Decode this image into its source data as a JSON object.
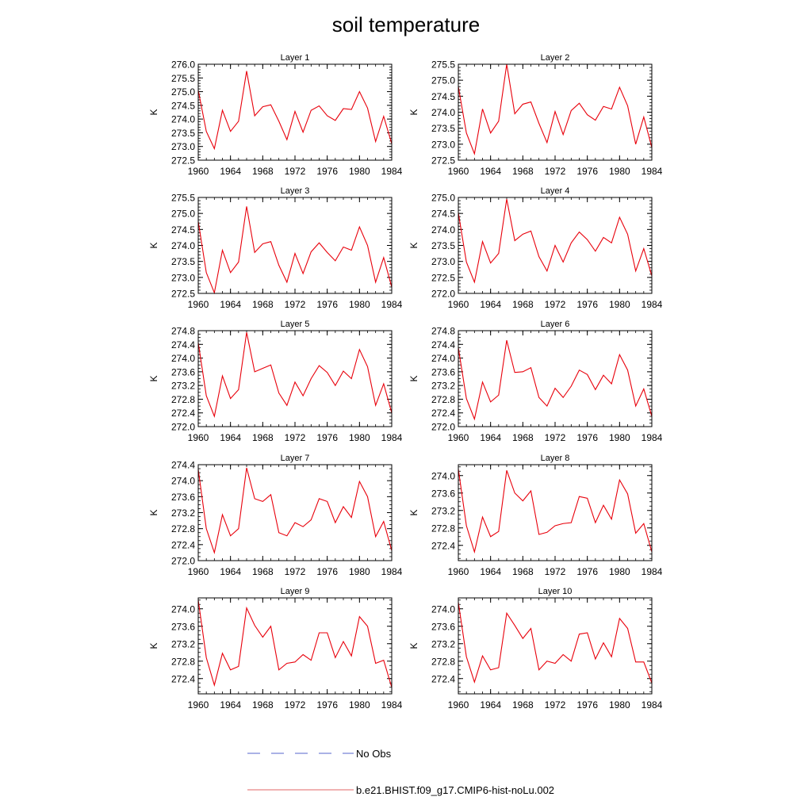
{
  "title": "soil temperature",
  "legend": [
    {
      "label": "No Obs",
      "style": "dashed",
      "color": "#5566cc"
    },
    {
      "label": "b.e21.BHIST.f09_g17.CMIP6-hist-noLu.002",
      "style": "solid",
      "color": "#e06666"
    }
  ],
  "chart_data": [
    {
      "type": "line",
      "title": "Layer 1",
      "ylabel": "K",
      "xlim": [
        1960,
        1984
      ],
      "ylim": [
        272.5,
        276.0
      ],
      "yticks": [
        "272.5",
        "273.0",
        "273.5",
        "274.0",
        "274.5",
        "275.0",
        "275.5",
        "276.0"
      ],
      "xticks": [
        "1960",
        "1964",
        "1968",
        "1972",
        "1976",
        "1980",
        "1984"
      ],
      "x": [
        1960,
        1961,
        1962,
        1963,
        1964,
        1965,
        1966,
        1967,
        1968,
        1969,
        1970,
        1971,
        1972,
        1973,
        1974,
        1975,
        1976,
        1977,
        1978,
        1979,
        1980,
        1981,
        1982,
        1983,
        1984
      ],
      "series": [
        {
          "name": "b.e21.BHIST.f09_g17.CMIP6-hist-noLu.002",
          "color": "#e8000b",
          "values": [
            275.05,
            273.55,
            272.92,
            274.32,
            273.55,
            273.92,
            275.75,
            274.12,
            274.45,
            274.52,
            273.92,
            273.25,
            274.28,
            273.52,
            274.32,
            274.48,
            274.12,
            273.95,
            274.38,
            274.35,
            275.0,
            274.4,
            273.18,
            274.1,
            273.1
          ]
        }
      ]
    },
    {
      "type": "line",
      "title": "Layer 2",
      "ylabel": "K",
      "xlim": [
        1960,
        1984
      ],
      "ylim": [
        272.5,
        275.5
      ],
      "yticks": [
        "272.5",
        "273.0",
        "273.5",
        "274.0",
        "274.5",
        "275.0",
        "275.5"
      ],
      "xticks": [
        "1960",
        "1964",
        "1968",
        "1972",
        "1976",
        "1980",
        "1984"
      ],
      "x": [
        1960,
        1961,
        1962,
        1963,
        1964,
        1965,
        1966,
        1967,
        1968,
        1969,
        1970,
        1971,
        1972,
        1973,
        1974,
        1975,
        1976,
        1977,
        1978,
        1979,
        1980,
        1981,
        1982,
        1983,
        1984
      ],
      "series": [
        {
          "name": "b.e21.BHIST.f09_g17.CMIP6-hist-noLu.002",
          "color": "#e8000b",
          "values": [
            274.8,
            273.35,
            272.7,
            274.1,
            273.35,
            273.72,
            275.5,
            273.95,
            274.25,
            274.32,
            273.65,
            273.05,
            274.02,
            273.3,
            274.05,
            274.28,
            273.92,
            273.75,
            274.18,
            274.1,
            274.78,
            274.2,
            273.0,
            273.85,
            272.9
          ]
        }
      ]
    },
    {
      "type": "line",
      "title": "Layer 3",
      "ylabel": "K",
      "xlim": [
        1960,
        1984
      ],
      "ylim": [
        272.5,
        275.5
      ],
      "yticks": [
        "272.5",
        "273.0",
        "273.5",
        "274.0",
        "274.5",
        "275.0",
        "275.5"
      ],
      "xticks": [
        "1960",
        "1964",
        "1968",
        "1972",
        "1976",
        "1980",
        "1984"
      ],
      "x": [
        1960,
        1961,
        1962,
        1963,
        1964,
        1965,
        1966,
        1967,
        1968,
        1969,
        1970,
        1971,
        1972,
        1973,
        1974,
        1975,
        1976,
        1977,
        1978,
        1979,
        1980,
        1981,
        1982,
        1983,
        1984
      ],
      "series": [
        {
          "name": "b.e21.BHIST.f09_g17.CMIP6-hist-noLu.002",
          "color": "#e8000b",
          "values": [
            274.75,
            273.15,
            272.52,
            273.85,
            273.15,
            273.48,
            275.22,
            273.78,
            274.05,
            274.12,
            273.38,
            272.85,
            273.75,
            273.12,
            273.8,
            274.08,
            273.78,
            273.52,
            273.95,
            273.85,
            274.58,
            274.0,
            272.85,
            273.62,
            272.7
          ]
        }
      ]
    },
    {
      "type": "line",
      "title": "Layer 4",
      "ylabel": "K",
      "xlim": [
        1960,
        1984
      ],
      "ylim": [
        272.0,
        275.0
      ],
      "yticks": [
        "272.0",
        "272.5",
        "273.0",
        "273.5",
        "274.0",
        "274.5",
        "275.0"
      ],
      "xticks": [
        "1960",
        "1964",
        "1968",
        "1972",
        "1976",
        "1980",
        "1984"
      ],
      "x": [
        1960,
        1961,
        1962,
        1963,
        1964,
        1965,
        1966,
        1967,
        1968,
        1969,
        1970,
        1971,
        1972,
        1973,
        1974,
        1975,
        1976,
        1977,
        1978,
        1979,
        1980,
        1981,
        1982,
        1983,
        1984
      ],
      "series": [
        {
          "name": "b.e21.BHIST.f09_g17.CMIP6-hist-noLu.002",
          "color": "#e8000b",
          "values": [
            274.52,
            272.98,
            272.35,
            273.62,
            272.95,
            273.25,
            274.95,
            273.65,
            273.85,
            273.95,
            273.15,
            272.7,
            273.5,
            272.98,
            273.58,
            273.92,
            273.68,
            273.32,
            273.75,
            273.58,
            274.38,
            273.85,
            272.7,
            273.4,
            272.55
          ]
        }
      ]
    },
    {
      "type": "line",
      "title": "Layer 5",
      "ylabel": "K",
      "xlim": [
        1960,
        1984
      ],
      "ylim": [
        272.0,
        274.8
      ],
      "yticks": [
        "272.0",
        "272.4",
        "272.8",
        "273.2",
        "273.6",
        "274.0",
        "274.4",
        "274.8"
      ],
      "xticks": [
        "1960",
        "1964",
        "1968",
        "1972",
        "1976",
        "1980",
        "1984"
      ],
      "x": [
        1960,
        1961,
        1962,
        1963,
        1964,
        1965,
        1966,
        1967,
        1968,
        1969,
        1970,
        1971,
        1972,
        1973,
        1974,
        1975,
        1976,
        1977,
        1978,
        1979,
        1980,
        1981,
        1982,
        1983,
        1984
      ],
      "series": [
        {
          "name": "b.e21.BHIST.f09_g17.CMIP6-hist-noLu.002",
          "color": "#e8000b",
          "values": [
            274.45,
            272.9,
            272.3,
            273.48,
            272.82,
            273.08,
            274.75,
            273.6,
            273.7,
            273.8,
            272.98,
            272.62,
            273.3,
            272.9,
            273.4,
            273.78,
            273.58,
            273.2,
            273.62,
            273.4,
            274.25,
            273.75,
            272.62,
            273.25,
            272.4
          ]
        }
      ]
    },
    {
      "type": "line",
      "title": "Layer 6",
      "ylabel": "K",
      "xlim": [
        1960,
        1984
      ],
      "ylim": [
        272.0,
        274.8
      ],
      "yticks": [
        "272.0",
        "272.4",
        "272.8",
        "273.2",
        "273.6",
        "274.0",
        "274.4",
        "274.8"
      ],
      "xticks": [
        "1960",
        "1964",
        "1968",
        "1972",
        "1976",
        "1980",
        "1984"
      ],
      "x": [
        1960,
        1961,
        1962,
        1963,
        1964,
        1965,
        1966,
        1967,
        1968,
        1969,
        1970,
        1971,
        1972,
        1973,
        1974,
        1975,
        1976,
        1977,
        1978,
        1979,
        1980,
        1981,
        1982,
        1983,
        1984
      ],
      "series": [
        {
          "name": "b.e21.BHIST.f09_g17.CMIP6-hist-noLu.002",
          "color": "#e8000b",
          "values": [
            274.3,
            272.82,
            272.22,
            273.3,
            272.72,
            272.92,
            274.52,
            273.58,
            273.6,
            273.72,
            272.85,
            272.6,
            273.12,
            272.85,
            273.18,
            273.65,
            273.52,
            273.08,
            273.5,
            273.25,
            274.1,
            273.65,
            272.6,
            273.1,
            272.3
          ]
        }
      ]
    },
    {
      "type": "line",
      "title": "Layer 7",
      "ylabel": "K",
      "xlim": [
        1960,
        1984
      ],
      "ylim": [
        272.0,
        274.4
      ],
      "yticks": [
        "272.0",
        "272.4",
        "272.8",
        "273.2",
        "273.6",
        "274.0",
        "274.4"
      ],
      "xticks": [
        "1960",
        "1964",
        "1968",
        "1972",
        "1976",
        "1980",
        "1984"
      ],
      "x": [
        1960,
        1961,
        1962,
        1963,
        1964,
        1965,
        1966,
        1967,
        1968,
        1969,
        1970,
        1971,
        1972,
        1973,
        1974,
        1975,
        1976,
        1977,
        1978,
        1979,
        1980,
        1981,
        1982,
        1983,
        1984
      ],
      "series": [
        {
          "name": "b.e21.BHIST.f09_g17.CMIP6-hist-noLu.002",
          "color": "#e8000b",
          "values": [
            274.28,
            272.8,
            272.2,
            273.15,
            272.62,
            272.8,
            274.32,
            273.55,
            273.48,
            273.65,
            272.7,
            272.62,
            272.95,
            272.85,
            273.02,
            273.55,
            273.48,
            272.95,
            273.35,
            273.08,
            273.98,
            273.6,
            272.6,
            272.98,
            272.25
          ]
        }
      ]
    },
    {
      "type": "line",
      "title": "Layer 8",
      "ylabel": "K",
      "xlim": [
        1960,
        1984
      ],
      "ylim": [
        272.05,
        274.25
      ],
      "yticks": [
        "272.4",
        "272.8",
        "273.2",
        "273.6",
        "274.0"
      ],
      "xticks": [
        "1960",
        "1964",
        "1968",
        "1972",
        "1976",
        "1980",
        "1984"
      ],
      "x": [
        1960,
        1961,
        1962,
        1963,
        1964,
        1965,
        1966,
        1967,
        1968,
        1969,
        1970,
        1971,
        1972,
        1973,
        1974,
        1975,
        1976,
        1977,
        1978,
        1979,
        1980,
        1981,
        1982,
        1983,
        1984
      ],
      "series": [
        {
          "name": "b.e21.BHIST.f09_g17.CMIP6-hist-noLu.002",
          "color": "#e8000b",
          "values": [
            274.15,
            272.85,
            272.25,
            273.05,
            272.6,
            272.72,
            274.12,
            273.6,
            273.42,
            273.65,
            272.65,
            272.7,
            272.85,
            272.9,
            272.92,
            273.52,
            273.48,
            272.92,
            273.32,
            273.0,
            273.9,
            273.58,
            272.68,
            272.9,
            272.25
          ]
        }
      ]
    },
    {
      "type": "line",
      "title": "Layer 9",
      "ylabel": "K",
      "xlim": [
        1960,
        1984
      ],
      "ylim": [
        272.05,
        274.25
      ],
      "yticks": [
        "272.4",
        "272.8",
        "273.2",
        "273.6",
        "274.0"
      ],
      "xticks": [
        "1960",
        "1964",
        "1968",
        "1972",
        "1976",
        "1980",
        "1984"
      ],
      "x": [
        1960,
        1961,
        1962,
        1963,
        1964,
        1965,
        1966,
        1967,
        1968,
        1969,
        1970,
        1971,
        1972,
        1973,
        1974,
        1975,
        1976,
        1977,
        1978,
        1979,
        1980,
        1981,
        1982,
        1983,
        1984
      ],
      "series": [
        {
          "name": "b.e21.BHIST.f09_g17.CMIP6-hist-noLu.002",
          "color": "#e8000b",
          "values": [
            274.2,
            272.88,
            272.25,
            272.98,
            272.6,
            272.68,
            274.02,
            273.62,
            273.35,
            273.6,
            272.6,
            272.75,
            272.78,
            272.95,
            272.82,
            273.45,
            273.45,
            272.88,
            273.25,
            272.92,
            273.82,
            273.6,
            272.75,
            272.82,
            272.2
          ]
        }
      ]
    },
    {
      "type": "line",
      "title": "Layer 10",
      "ylabel": "K",
      "xlim": [
        1960,
        1984
      ],
      "ylim": [
        272.05,
        274.25
      ],
      "yticks": [
        "272.4",
        "272.8",
        "273.2",
        "273.6",
        "274.0"
      ],
      "xticks": [
        "1960",
        "1964",
        "1968",
        "1972",
        "1976",
        "1980",
        "1984"
      ],
      "x": [
        1960,
        1961,
        1962,
        1963,
        1964,
        1965,
        1966,
        1967,
        1968,
        1969,
        1970,
        1971,
        1972,
        1973,
        1974,
        1975,
        1976,
        1977,
        1978,
        1979,
        1980,
        1981,
        1982,
        1983,
        1984
      ],
      "series": [
        {
          "name": "b.e21.BHIST.f09_g17.CMIP6-hist-noLu.002",
          "color": "#e8000b",
          "values": [
            274.15,
            272.9,
            272.32,
            272.92,
            272.6,
            272.65,
            273.9,
            273.62,
            273.32,
            273.55,
            272.6,
            272.8,
            272.75,
            272.95,
            272.8,
            273.42,
            273.45,
            272.85,
            273.22,
            272.9,
            273.78,
            273.55,
            272.78,
            272.78,
            272.3
          ]
        }
      ]
    }
  ]
}
